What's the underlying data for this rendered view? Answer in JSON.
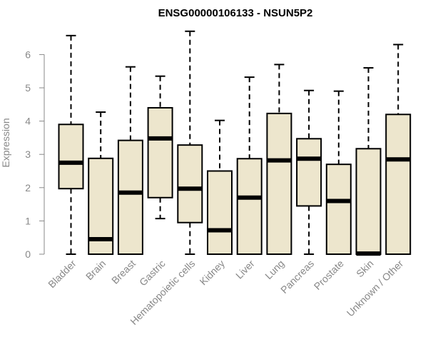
{
  "chart_data": {
    "type": "boxplot",
    "title": "ENSG00000106133 - NSUN5P2",
    "ylabel": "Expression",
    "xlabel": "",
    "ylim": [
      0,
      6.7
    ],
    "yticks": [
      0,
      1,
      2,
      3,
      4,
      5,
      6
    ],
    "grid": false,
    "box_fill": "#ede6cd",
    "categories": [
      "Bladder",
      "Brain",
      "Breast",
      "Gastric",
      "Hematopoietic cells",
      "Kidney",
      "Liver",
      "Lung",
      "Pancreas",
      "Prostate",
      "Skin",
      "Unknown / Other"
    ],
    "boxes": [
      {
        "min": 0.0,
        "q1": 1.97,
        "median": 2.75,
        "q3": 3.9,
        "max": 6.57
      },
      {
        "min": 0.0,
        "q1": 0.0,
        "median": 0.45,
        "q3": 2.88,
        "max": 4.27
      },
      {
        "min": 0.0,
        "q1": 0.0,
        "median": 1.85,
        "q3": 3.42,
        "max": 5.63
      },
      {
        "min": 1.07,
        "q1": 1.7,
        "median": 3.48,
        "q3": 4.4,
        "max": 5.35
      },
      {
        "min": 0.0,
        "q1": 0.95,
        "median": 1.97,
        "q3": 3.28,
        "max": 6.7
      },
      {
        "min": 0.0,
        "q1": 0.0,
        "median": 0.72,
        "q3": 2.5,
        "max": 4.02
      },
      {
        "min": 0.0,
        "q1": 0.0,
        "median": 1.7,
        "q3": 2.87,
        "max": 5.32
      },
      {
        "min": 0.0,
        "q1": 0.0,
        "median": 2.82,
        "q3": 4.23,
        "max": 5.7
      },
      {
        "min": 0.0,
        "q1": 1.45,
        "median": 2.87,
        "q3": 3.47,
        "max": 4.92
      },
      {
        "min": 0.0,
        "q1": 0.0,
        "median": 1.6,
        "q3": 2.7,
        "max": 4.9
      },
      {
        "min": 0.0,
        "q1": 0.0,
        "median": 0.02,
        "q3": 3.17,
        "max": 5.6
      },
      {
        "min": 0.0,
        "q1": 0.0,
        "median": 2.85,
        "q3": 4.2,
        "max": 6.3
      }
    ]
  }
}
